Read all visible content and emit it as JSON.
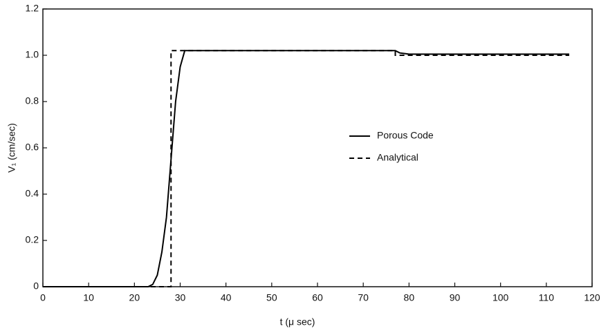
{
  "chart_data": {
    "type": "line",
    "xlabel": "t (μ sec)",
    "ylabel": "V₁ (cm/sec)",
    "xlim": [
      0,
      120
    ],
    "xticks": [
      0,
      10,
      20,
      30,
      40,
      50,
      60,
      70,
      80,
      90,
      100,
      110,
      120
    ],
    "ylim": [
      0,
      1.2
    ],
    "yticks": [
      0,
      0.2,
      0.4,
      0.6,
      0.8,
      {
        "value": 1,
        "label": "1.0"
      },
      1.2
    ],
    "grid": false,
    "legend": "center-right",
    "series": [
      {
        "name": "Porous Code",
        "color": "#000000",
        "dash": "solid",
        "x": [
          0,
          20,
          23,
          24,
          25,
          26,
          27,
          28,
          29,
          30,
          31,
          32,
          40,
          60,
          76,
          77,
          78,
          80,
          90,
          100,
          115
        ],
        "values": [
          0,
          0,
          0,
          0.01,
          0.05,
          0.15,
          0.3,
          0.55,
          0.8,
          0.95,
          1.02,
          1.02,
          1.02,
          1.02,
          1.02,
          1.02,
          1.01,
          1.005,
          1.005,
          1.005,
          1.005
        ]
      },
      {
        "name": "Analytical",
        "color": "#000000",
        "dash": "dashed",
        "x": [
          0,
          28,
          28,
          77,
          77,
          115
        ],
        "values": [
          0,
          0,
          1.02,
          1.02,
          1.0,
          1.0
        ]
      }
    ]
  }
}
